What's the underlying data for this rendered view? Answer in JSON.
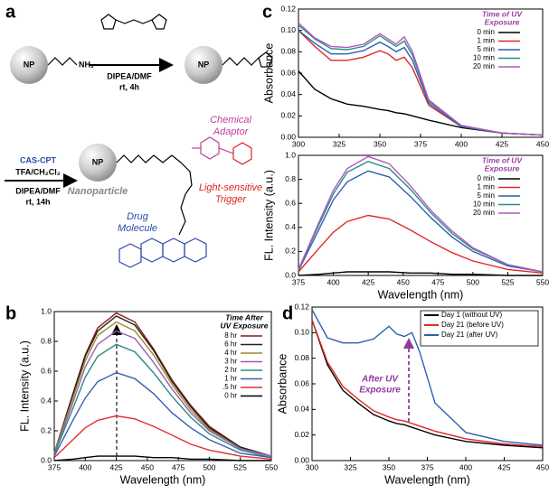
{
  "panel_labels": [
    "a",
    "b",
    "c",
    "d"
  ],
  "scheme": {
    "np": "NP",
    "amine": "NH₂",
    "step1_reagent": "DIPEA/DMF",
    "step1_condition": "rt, 4h",
    "step2_reagent_a": "CAS-CPT",
    "step2_reagent_b": "TFA/CH₂Cl₂",
    "step2_reagent_c": "DIPEA/DMF",
    "step2_condition": "rt, 14h",
    "nanoparticle_label": "Nanoparticle",
    "adaptor_label": [
      "Chemical",
      "Adaptor"
    ],
    "trigger_label": [
      "Light-sensitive",
      "Trigger"
    ],
    "drug_label": [
      "Drug",
      "Molecule"
    ]
  },
  "chart_data": [
    {
      "type": "line",
      "ylabel": "Absorbance",
      "legend_title": [
        "Time of UV",
        "Exposure"
      ],
      "legend_title_color": "#9b3fa0",
      "legend": "upper right",
      "x": [
        300,
        310,
        320,
        330,
        340,
        350,
        355,
        360,
        365,
        370,
        380,
        400,
        425,
        450
      ],
      "xlim": [
        300,
        450
      ],
      "xticks": [
        300,
        325,
        350,
        375,
        400,
        425,
        450
      ],
      "ylim": [
        0,
        0.12
      ],
      "yticks": [
        {
          "value": 0,
          "label": "0.00"
        },
        {
          "value": 0.02,
          "label": "0.02"
        },
        {
          "value": 0.04,
          "label": "0.04"
        },
        {
          "value": 0.06,
          "label": "0.06"
        },
        {
          "value": 0.08,
          "label": "0.08"
        },
        {
          "value": 0.1,
          "label": "0.10"
        },
        {
          "value": 0.12,
          "label": "0.12"
        }
      ],
      "series": [
        {
          "name": "0 min",
          "color": "#000000",
          "values": [
            0.062,
            0.045,
            0.036,
            0.031,
            0.029,
            0.026,
            0.025,
            0.023,
            0.022,
            0.02,
            0.016,
            0.009,
            0.004,
            0.002
          ]
        },
        {
          "name": "1 min",
          "color": "#e02828",
          "values": [
            0.1,
            0.085,
            0.072,
            0.072,
            0.075,
            0.081,
            0.078,
            0.072,
            0.075,
            0.065,
            0.03,
            0.01,
            0.004,
            0.002
          ]
        },
        {
          "name": "5 min",
          "color": "#2f5fae",
          "values": [
            0.1,
            0.088,
            0.078,
            0.078,
            0.081,
            0.089,
            0.085,
            0.08,
            0.084,
            0.072,
            0.032,
            0.01,
            0.004,
            0.002
          ]
        },
        {
          "name": "10 min",
          "color": "#2a8a8a",
          "values": [
            0.105,
            0.092,
            0.083,
            0.082,
            0.085,
            0.095,
            0.09,
            0.085,
            0.09,
            0.077,
            0.034,
            0.011,
            0.004,
            0.002
          ]
        },
        {
          "name": "20 min",
          "color": "#b05ab8",
          "values": [
            0.107,
            0.093,
            0.085,
            0.084,
            0.087,
            0.097,
            0.092,
            0.087,
            0.094,
            0.08,
            0.035,
            0.011,
            0.004,
            0.002
          ]
        }
      ]
    },
    {
      "type": "line",
      "ylabel": "FL. Intensity (a.u.)",
      "xlabel": "Wavelength (nm)",
      "legend_title": [
        "Time of UV",
        "Exposure"
      ],
      "legend_title_color": "#9b3fa0",
      "legend": "upper right",
      "x": [
        375,
        390,
        400,
        410,
        425,
        440,
        455,
        470,
        485,
        500,
        525,
        550
      ],
      "xlim": [
        375,
        550
      ],
      "xticks": [
        375,
        400,
        425,
        450,
        475,
        500,
        525,
        550
      ],
      "ylim": [
        0,
        1
      ],
      "yticks": [
        {
          "value": 0,
          "label": "0.0"
        },
        0.2,
        0.4,
        0.6,
        0.8,
        {
          "value": 1,
          "label": "1.0"
        }
      ],
      "series": [
        {
          "name": "0 min",
          "color": "#000000",
          "values": [
            0,
            0.01,
            0.02,
            0.03,
            0.03,
            0.03,
            0.02,
            0.02,
            0.01,
            0.01,
            0,
            0
          ]
        },
        {
          "name": "1 min",
          "color": "#e02828",
          "values": [
            0.03,
            0.23,
            0.36,
            0.45,
            0.5,
            0.47,
            0.38,
            0.28,
            0.19,
            0.12,
            0.05,
            0.02
          ]
        },
        {
          "name": "5 min",
          "color": "#2f5fae",
          "values": [
            0.04,
            0.39,
            0.63,
            0.78,
            0.87,
            0.82,
            0.66,
            0.48,
            0.32,
            0.2,
            0.08,
            0.03
          ]
        },
        {
          "name": "10 min",
          "color": "#2a8a8a",
          "values": [
            0.05,
            0.43,
            0.68,
            0.86,
            0.95,
            0.89,
            0.72,
            0.52,
            0.35,
            0.22,
            0.09,
            0.03
          ]
        },
        {
          "name": "20 min",
          "color": "#b05ab8",
          "values": [
            0.05,
            0.45,
            0.71,
            0.89,
            0.99,
            0.93,
            0.75,
            0.54,
            0.37,
            0.23,
            0.09,
            0.03
          ]
        }
      ]
    },
    {
      "type": "line",
      "ylabel": "FL. Intensity (a.u.)",
      "xlabel": "Wavelength (nm)",
      "legend_title": [
        "Time After",
        "UV Exposure"
      ],
      "legend_title_color": "#000000",
      "legend": "upper right",
      "x": [
        375,
        390,
        400,
        410,
        425,
        440,
        455,
        470,
        485,
        500,
        525,
        550
      ],
      "xlim": [
        375,
        550
      ],
      "xticks": [
        375,
        400,
        425,
        450,
        475,
        500,
        525,
        550
      ],
      "ylim": [
        0,
        1
      ],
      "yticks": [
        {
          "value": 0,
          "label": "0.0"
        },
        0.2,
        0.4,
        0.6,
        0.8,
        {
          "value": 1,
          "label": "1.0"
        }
      ],
      "series": [
        {
          "name": "8 hr",
          "color": "#8b1a1a",
          "values": [
            0.05,
            0.45,
            0.71,
            0.89,
            0.99,
            0.93,
            0.75,
            0.54,
            0.37,
            0.23,
            0.09,
            0.03
          ]
        },
        {
          "name": "6 hr",
          "color": "#222222",
          "values": [
            0.05,
            0.44,
            0.7,
            0.87,
            0.97,
            0.91,
            0.74,
            0.53,
            0.36,
            0.22,
            0.09,
            0.03
          ]
        },
        {
          "name": "4 hr",
          "color": "#9a8a2a",
          "values": [
            0.05,
            0.42,
            0.67,
            0.84,
            0.93,
            0.87,
            0.71,
            0.51,
            0.34,
            0.21,
            0.08,
            0.03
          ]
        },
        {
          "name": "3 hr",
          "color": "#9b5fb0",
          "values": [
            0.04,
            0.39,
            0.63,
            0.78,
            0.87,
            0.82,
            0.66,
            0.48,
            0.32,
            0.2,
            0.08,
            0.03
          ]
        },
        {
          "name": "2 hr",
          "color": "#2a8a8a",
          "values": [
            0.04,
            0.35,
            0.56,
            0.7,
            0.78,
            0.73,
            0.59,
            0.43,
            0.29,
            0.18,
            0.07,
            0.02
          ]
        },
        {
          "name": "1 hr",
          "color": "#3a5fb0",
          "values": [
            0.03,
            0.27,
            0.42,
            0.53,
            0.59,
            0.55,
            0.45,
            0.32,
            0.22,
            0.14,
            0.05,
            0.02
          ]
        },
        {
          "name": ".5 hr",
          "color": "#e03030",
          "values": [
            0.02,
            0.14,
            0.22,
            0.27,
            0.3,
            0.28,
            0.23,
            0.17,
            0.11,
            0.07,
            0.03,
            0.01
          ]
        },
        {
          "name": "0 hr",
          "color": "#000000",
          "values": [
            0,
            0.01,
            0.02,
            0.03,
            0.03,
            0.03,
            0.02,
            0.02,
            0.01,
            0.01,
            0,
            0
          ]
        }
      ]
    },
    {
      "type": "line",
      "ylabel": "Absorbance",
      "xlabel": "Wavelength (nm)",
      "legend": "upper right",
      "legend_frame": true,
      "annotation": [
        "After UV",
        "Exposure"
      ],
      "annotation_color": "#8e3a9e",
      "x": [
        300,
        310,
        320,
        330,
        340,
        350,
        355,
        360,
        365,
        370,
        380,
        400,
        425,
        450
      ],
      "xlim": [
        300,
        450
      ],
      "xticks": [
        300,
        325,
        350,
        375,
        400,
        425,
        450
      ],
      "ylim": [
        0,
        0.12
      ],
      "yticks": [
        {
          "value": 0,
          "label": "0.00"
        },
        {
          "value": 0.02,
          "label": "0.02"
        },
        {
          "value": 0.04,
          "label": "0.04"
        },
        {
          "value": 0.06,
          "label": "0.06"
        },
        {
          "value": 0.08,
          "label": "0.08"
        },
        {
          "value": 0.1,
          "label": "0.10"
        },
        {
          "value": 0.12,
          "label": "0.12"
        }
      ],
      "series": [
        {
          "name": "Day 1 (without UV)",
          "color": "#000000",
          "values": [
            0.11,
            0.075,
            0.055,
            0.045,
            0.036,
            0.031,
            0.029,
            0.028,
            0.026,
            0.024,
            0.02,
            0.015,
            0.012,
            0.01
          ]
        },
        {
          "name": "Day 21 (before UV)",
          "color": "#e02828",
          "values": [
            0.11,
            0.077,
            0.058,
            0.048,
            0.039,
            0.034,
            0.032,
            0.031,
            0.029,
            0.027,
            0.023,
            0.017,
            0.013,
            0.011
          ]
        },
        {
          "name": "Day 21 (after UV)",
          "color": "#2f5fae",
          "values": [
            0.118,
            0.096,
            0.092,
            0.092,
            0.095,
            0.105,
            0.099,
            0.097,
            0.1,
            0.085,
            0.045,
            0.022,
            0.015,
            0.012
          ]
        }
      ]
    }
  ]
}
